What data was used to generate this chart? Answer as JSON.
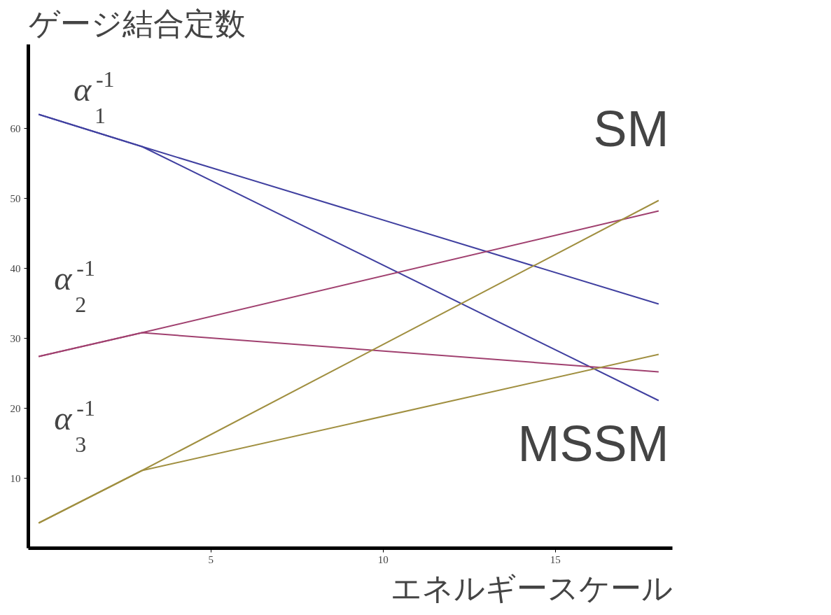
{
  "chart_data": {
    "type": "line",
    "xlabel": "エネルギースケール",
    "ylabel": "ゲージ結合定数",
    "x": [
      0,
      3,
      18
    ],
    "series": [
      {
        "color": "#4040a0",
        "values": [
          62,
          57.4,
          34.9
        ]
      },
      {
        "color": "#4040a0",
        "values": [
          62,
          57.4,
          21.1
        ]
      },
      {
        "color": "#a0406f",
        "values": [
          27.4,
          30.8,
          48.2
        ]
      },
      {
        "color": "#a0406f",
        "values": [
          27.4,
          30.8,
          25.2
        ]
      },
      {
        "color": "#a08f40",
        "values": [
          3.6,
          11.1,
          49.7
        ]
      },
      {
        "color": "#a08f40",
        "values": [
          3.6,
          11.1,
          27.7
        ]
      }
    ],
    "annotations": [
      "α$_{1}$$^{-1}$",
      "α$_{2}$$^{-1}$",
      "α$_{3}$$^{-1}$",
      "SM",
      "MSSM"
    ],
    "xlim": [
      -0.3,
      18.4
    ],
    "ylim": [
      0,
      72
    ],
    "xticks": [
      5,
      10,
      15
    ],
    "yticks": [
      10,
      20,
      30,
      40,
      50,
      60
    ],
    "grid": false,
    "marker": "none",
    "line_style": "solid"
  }
}
